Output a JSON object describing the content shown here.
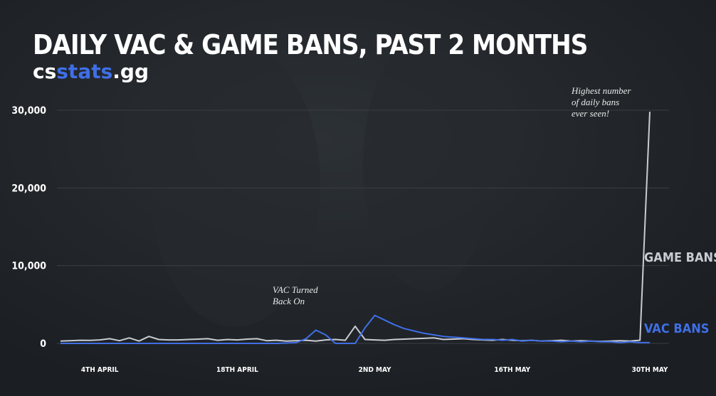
{
  "chart_data": {
    "type": "line",
    "title": "DAILY VAC & GAME BANS, PAST 2 MONTHS",
    "logo": [
      "cs",
      "stats",
      ".gg"
    ],
    "categories": [
      null,
      null,
      null,
      null,
      "4TH APRIL",
      null,
      null,
      null,
      null,
      null,
      null,
      null,
      null,
      null,
      null,
      null,
      null,
      null,
      "18TH APRIL",
      null,
      null,
      null,
      null,
      null,
      null,
      null,
      null,
      null,
      null,
      null,
      null,
      null,
      "2ND MAY",
      null,
      null,
      null,
      null,
      null,
      null,
      null,
      null,
      null,
      null,
      null,
      null,
      null,
      "16TH MAY",
      null,
      null,
      null,
      null,
      null,
      null,
      null,
      null,
      null,
      null,
      null,
      null,
      null,
      "30TH MAY"
    ],
    "series": [
      {
        "name": "GAME BANS",
        "color": "#c9ccd3",
        "values": [
          300,
          350,
          400,
          380,
          450,
          600,
          350,
          700,
          300,
          900,
          500,
          450,
          450,
          500,
          550,
          600,
          400,
          500,
          450,
          550,
          600,
          350,
          400,
          300,
          350,
          400,
          300,
          450,
          500,
          400,
          2200,
          500,
          450,
          400,
          500,
          550,
          600,
          650,
          700,
          500,
          550,
          600,
          500,
          450,
          400,
          500,
          400,
          350,
          400,
          300,
          350,
          400,
          300,
          350,
          300,
          250,
          300,
          350,
          300,
          400,
          29800
        ]
      },
      {
        "name": "VAC BANS",
        "color": "#3f6fe6",
        "values": [
          0,
          0,
          0,
          0,
          0,
          0,
          0,
          0,
          0,
          0,
          0,
          0,
          0,
          0,
          0,
          0,
          0,
          0,
          0,
          0,
          0,
          0,
          0,
          50,
          100,
          600,
          1700,
          1100,
          0,
          0,
          0,
          2000,
          3600,
          3000,
          2400,
          1900,
          1600,
          1300,
          1100,
          900,
          800,
          700,
          600,
          500,
          500,
          400,
          500,
          300,
          400,
          300,
          300,
          200,
          300,
          200,
          300,
          200,
          200,
          100,
          200,
          100,
          100
        ]
      }
    ],
    "ylim": [
      0,
      30000
    ],
    "yticks": [
      {
        "value": 0,
        "label": "0"
      },
      {
        "value": 10000,
        "label": "10,000"
      },
      {
        "value": 20000,
        "label": "20,000"
      },
      {
        "value": 30000,
        "label": "30,000"
      }
    ],
    "grid": true,
    "annotations": [
      {
        "lines": [
          "VAC Turned",
          "Back On"
        ]
      },
      {
        "lines": [
          "Highest number",
          "of daily bans",
          "ever seen!"
        ]
      }
    ]
  }
}
